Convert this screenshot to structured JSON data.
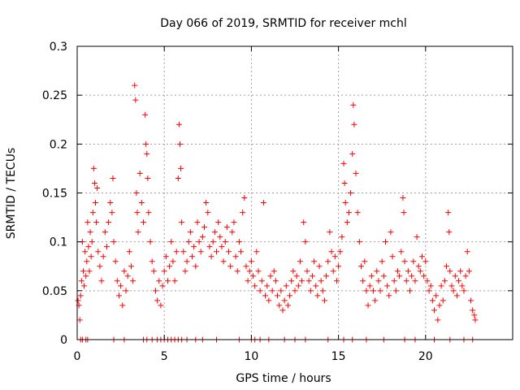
{
  "chart_data": {
    "type": "scatter",
    "title": "Day 066 of 2019, SRMTID for receiver mchl",
    "xlabel": "GPS time / hours",
    "ylabel": "SRMTID / TECUs",
    "xlim": [
      0,
      25
    ],
    "ylim": [
      0,
      0.3
    ],
    "xticks": [
      0,
      5,
      10,
      15,
      20
    ],
    "xtick_labels": [
      "0",
      "5",
      "10",
      "15",
      "20"
    ],
    "yticks": [
      0,
      0.05,
      0.1,
      0.15,
      0.2,
      0.25,
      0.3
    ],
    "ytick_labels": [
      "0",
      "0.05",
      "0.1",
      "0.15",
      "0.2",
      "0.25",
      "0.3"
    ],
    "grid": true,
    "marker": "+",
    "color": "#ff0000",
    "series": [
      {
        "name": "SRMTID",
        "points": [
          [
            0.05,
            0.04
          ],
          [
            0.1,
            0.035
          ],
          [
            0.15,
            0.02
          ],
          [
            0.2,
            0.045
          ],
          [
            0.25,
            0.06
          ],
          [
            0.3,
            0.1
          ],
          [
            0.35,
            0.07
          ],
          [
            0.4,
            0.055
          ],
          [
            0.45,
            0.09
          ],
          [
            0.5,
            0.065
          ],
          [
            0.55,
            0.08
          ],
          [
            0.6,
            0.12
          ],
          [
            0.65,
            0.095
          ],
          [
            0.7,
            0.07
          ],
          [
            0.75,
            0.11
          ],
          [
            0.8,
            0.085
          ],
          [
            0.85,
            0.1
          ],
          [
            0.9,
            0.13
          ],
          [
            0.95,
            0.175
          ],
          [
            1.0,
            0.16
          ],
          [
            1.05,
            0.14
          ],
          [
            1.1,
            0.12
          ],
          [
            1.15,
            0.155
          ],
          [
            1.2,
            0.09
          ],
          [
            1.3,
            0.075
          ],
          [
            1.4,
            0.06
          ],
          [
            1.5,
            0.085
          ],
          [
            1.6,
            0.11
          ],
          [
            1.7,
            0.095
          ],
          [
            1.8,
            0.12
          ],
          [
            1.9,
            0.14
          ],
          [
            2.0,
            0.13
          ],
          [
            2.05,
            0.165
          ],
          [
            2.1,
            0.1
          ],
          [
            2.2,
            0.08
          ],
          [
            2.3,
            0.06
          ],
          [
            2.4,
            0.045
          ],
          [
            2.5,
            0.055
          ],
          [
            2.6,
            0.035
          ],
          [
            2.7,
            0.07
          ],
          [
            2.8,
            0.05
          ],
          [
            2.9,
            0.065
          ],
          [
            3.0,
            0.09
          ],
          [
            3.1,
            0.075
          ],
          [
            3.2,
            0.06
          ],
          [
            3.3,
            0.26
          ],
          [
            3.35,
            0.245
          ],
          [
            3.4,
            0.15
          ],
          [
            3.45,
            0.13
          ],
          [
            3.5,
            0.11
          ],
          [
            3.6,
            0.17
          ],
          [
            3.7,
            0.14
          ],
          [
            3.8,
            0.12
          ],
          [
            3.9,
            0.23
          ],
          [
            3.95,
            0.2
          ],
          [
            4.0,
            0.19
          ],
          [
            4.05,
            0.165
          ],
          [
            4.1,
            0.13
          ],
          [
            4.2,
            0.1
          ],
          [
            4.3,
            0.08
          ],
          [
            4.4,
            0.07
          ],
          [
            4.5,
            0.05
          ],
          [
            4.6,
            0.04
          ],
          [
            4.7,
            0.06
          ],
          [
            4.8,
            0.035
          ],
          [
            4.9,
            0.055
          ],
          [
            5.0,
            0.07
          ],
          [
            5.1,
            0.085
          ],
          [
            5.2,
            0.06
          ],
          [
            5.3,
            0.075
          ],
          [
            5.4,
            0.1
          ],
          [
            5.5,
            0.08
          ],
          [
            5.6,
            0.06
          ],
          [
            5.7,
            0.09
          ],
          [
            5.8,
            0.165
          ],
          [
            5.85,
            0.22
          ],
          [
            5.9,
            0.2
          ],
          [
            5.95,
            0.175
          ],
          [
            6.0,
            0.12
          ],
          [
            6.1,
            0.09
          ],
          [
            6.2,
            0.07
          ],
          [
            6.3,
            0.08
          ],
          [
            6.4,
            0.1
          ],
          [
            6.5,
            0.11
          ],
          [
            6.6,
            0.085
          ],
          [
            6.7,
            0.095
          ],
          [
            6.8,
            0.075
          ],
          [
            6.9,
            0.12
          ],
          [
            7.0,
            0.1
          ],
          [
            7.1,
            0.09
          ],
          [
            7.2,
            0.105
          ],
          [
            7.3,
            0.115
          ],
          [
            7.4,
            0.14
          ],
          [
            7.5,
            0.13
          ],
          [
            7.6,
            0.095
          ],
          [
            7.7,
            0.085
          ],
          [
            7.8,
            0.1
          ],
          [
            7.9,
            0.11
          ],
          [
            8.0,
            0.09
          ],
          [
            8.1,
            0.12
          ],
          [
            8.2,
            0.105
          ],
          [
            8.3,
            0.095
          ],
          [
            8.4,
            0.08
          ],
          [
            8.5,
            0.1
          ],
          [
            8.6,
            0.115
          ],
          [
            8.7,
            0.09
          ],
          [
            8.8,
            0.075
          ],
          [
            8.9,
            0.11
          ],
          [
            9.0,
            0.12
          ],
          [
            9.1,
            0.085
          ],
          [
            9.2,
            0.07
          ],
          [
            9.3,
            0.1
          ],
          [
            9.4,
            0.09
          ],
          [
            9.5,
            0.13
          ],
          [
            9.6,
            0.145
          ],
          [
            9.7,
            0.075
          ],
          [
            9.8,
            0.06
          ],
          [
            9.9,
            0.07
          ],
          [
            10.0,
            0.08
          ],
          [
            10.1,
            0.065
          ],
          [
            10.2,
            0.055
          ],
          [
            10.3,
            0.09
          ],
          [
            10.4,
            0.07
          ],
          [
            10.5,
            0.05
          ],
          [
            10.6,
            0.06
          ],
          [
            10.7,
            0.14
          ],
          [
            10.8,
            0.045
          ],
          [
            10.9,
            0.055
          ],
          [
            11.0,
            0.04
          ],
          [
            11.1,
            0.065
          ],
          [
            11.2,
            0.05
          ],
          [
            11.3,
            0.07
          ],
          [
            11.4,
            0.06
          ],
          [
            11.5,
            0.045
          ],
          [
            11.6,
            0.035
          ],
          [
            11.7,
            0.05
          ],
          [
            11.8,
            0.03
          ],
          [
            11.9,
            0.04
          ],
          [
            12.0,
            0.055
          ],
          [
            12.1,
            0.035
          ],
          [
            12.2,
            0.045
          ],
          [
            12.3,
            0.06
          ],
          [
            12.4,
            0.07
          ],
          [
            12.5,
            0.05
          ],
          [
            12.6,
            0.065
          ],
          [
            12.7,
            0.055
          ],
          [
            12.8,
            0.08
          ],
          [
            12.9,
            0.06
          ],
          [
            13.0,
            0.12
          ],
          [
            13.1,
            0.1
          ],
          [
            13.2,
            0.07
          ],
          [
            13.3,
            0.06
          ],
          [
            13.4,
            0.05
          ],
          [
            13.5,
            0.065
          ],
          [
            13.6,
            0.08
          ],
          [
            13.7,
            0.055
          ],
          [
            13.8,
            0.045
          ],
          [
            13.9,
            0.075
          ],
          [
            14.0,
            0.06
          ],
          [
            14.1,
            0.05
          ],
          [
            14.2,
            0.04
          ],
          [
            14.3,
            0.065
          ],
          [
            14.4,
            0.08
          ],
          [
            14.5,
            0.11
          ],
          [
            14.6,
            0.09
          ],
          [
            14.7,
            0.07
          ],
          [
            14.8,
            0.085
          ],
          [
            14.9,
            0.06
          ],
          [
            15.0,
            0.075
          ],
          [
            15.1,
            0.09
          ],
          [
            15.2,
            0.105
          ],
          [
            15.3,
            0.18
          ],
          [
            15.35,
            0.16
          ],
          [
            15.4,
            0.14
          ],
          [
            15.5,
            0.12
          ],
          [
            15.6,
            0.13
          ],
          [
            15.7,
            0.15
          ],
          [
            15.8,
            0.19
          ],
          [
            15.85,
            0.24
          ],
          [
            15.9,
            0.22
          ],
          [
            16.0,
            0.17
          ],
          [
            16.1,
            0.13
          ],
          [
            16.2,
            0.1
          ],
          [
            16.3,
            0.075
          ],
          [
            16.4,
            0.06
          ],
          [
            16.5,
            0.08
          ],
          [
            16.6,
            0.05
          ],
          [
            16.7,
            0.035
          ],
          [
            16.8,
            0.055
          ],
          [
            16.9,
            0.065
          ],
          [
            17.0,
            0.05
          ],
          [
            17.1,
            0.04
          ],
          [
            17.2,
            0.07
          ],
          [
            17.3,
            0.06
          ],
          [
            17.4,
            0.05
          ],
          [
            17.5,
            0.08
          ],
          [
            17.6,
            0.065
          ],
          [
            17.7,
            0.1
          ],
          [
            17.8,
            0.055
          ],
          [
            17.9,
            0.045
          ],
          [
            18.0,
            0.11
          ],
          [
            18.1,
            0.085
          ],
          [
            18.2,
            0.06
          ],
          [
            18.3,
            0.05
          ],
          [
            18.4,
            0.07
          ],
          [
            18.5,
            0.065
          ],
          [
            18.6,
            0.09
          ],
          [
            18.7,
            0.145
          ],
          [
            18.75,
            0.13
          ],
          [
            18.8,
            0.08
          ],
          [
            18.9,
            0.06
          ],
          [
            19.0,
            0.07
          ],
          [
            19.1,
            0.05
          ],
          [
            19.2,
            0.065
          ],
          [
            19.3,
            0.08
          ],
          [
            19.4,
            0.06
          ],
          [
            19.5,
            0.105
          ],
          [
            19.6,
            0.075
          ],
          [
            19.7,
            0.07
          ],
          [
            19.8,
            0.085
          ],
          [
            19.9,
            0.065
          ],
          [
            20.0,
            0.08
          ],
          [
            20.1,
            0.06
          ],
          [
            20.2,
            0.05
          ],
          [
            20.3,
            0.055
          ],
          [
            20.4,
            0.04
          ],
          [
            20.5,
            0.03
          ],
          [
            20.6,
            0.045
          ],
          [
            20.7,
            0.02
          ],
          [
            20.8,
            0.035
          ],
          [
            20.9,
            0.055
          ],
          [
            21.0,
            0.04
          ],
          [
            21.1,
            0.06
          ],
          [
            21.2,
            0.075
          ],
          [
            21.3,
            0.13
          ],
          [
            21.35,
            0.11
          ],
          [
            21.4,
            0.07
          ],
          [
            21.5,
            0.055
          ],
          [
            21.6,
            0.05
          ],
          [
            21.7,
            0.065
          ],
          [
            21.8,
            0.045
          ],
          [
            21.9,
            0.06
          ],
          [
            22.0,
            0.07
          ],
          [
            22.1,
            0.055
          ],
          [
            22.2,
            0.05
          ],
          [
            22.3,
            0.065
          ],
          [
            22.4,
            0.09
          ],
          [
            22.5,
            0.07
          ],
          [
            22.6,
            0.04
          ],
          [
            22.7,
            0.03
          ],
          [
            22.8,
            0.025
          ],
          [
            22.85,
            0.02
          ],
          [
            0.2,
            0.0
          ],
          [
            0.3,
            0.0
          ],
          [
            0.5,
            0.0
          ],
          [
            0.6,
            0.0
          ],
          [
            2.1,
            0.0
          ],
          [
            2.7,
            0.0
          ],
          [
            3.8,
            0.0
          ],
          [
            4.0,
            0.0
          ],
          [
            4.3,
            0.0
          ],
          [
            4.6,
            0.0
          ],
          [
            4.8,
            0.0
          ],
          [
            5.0,
            0.0
          ],
          [
            5.2,
            0.0
          ],
          [
            5.4,
            0.0
          ],
          [
            5.6,
            0.0
          ],
          [
            5.8,
            0.0
          ],
          [
            6.0,
            0.0
          ],
          [
            6.3,
            0.0
          ],
          [
            6.8,
            0.0
          ],
          [
            7.2,
            0.0
          ],
          [
            8.0,
            0.0
          ],
          [
            9.3,
            0.0
          ],
          [
            10.0,
            0.0
          ],
          [
            10.2,
            0.0
          ],
          [
            10.5,
            0.0
          ],
          [
            11.0,
            0.0
          ],
          [
            11.9,
            0.0
          ],
          [
            12.5,
            0.0
          ],
          [
            13.1,
            0.0
          ],
          [
            14.4,
            0.0
          ],
          [
            15.3,
            0.0
          ],
          [
            15.8,
            0.0
          ],
          [
            16.6,
            0.0
          ],
          [
            17.6,
            0.0
          ],
          [
            18.8,
            0.0
          ],
          [
            19.4,
            0.0
          ],
          [
            20.5,
            0.0
          ],
          [
            21.4,
            0.0
          ],
          [
            22.2,
            0.0
          ],
          [
            22.7,
            0.0
          ]
        ]
      }
    ]
  }
}
